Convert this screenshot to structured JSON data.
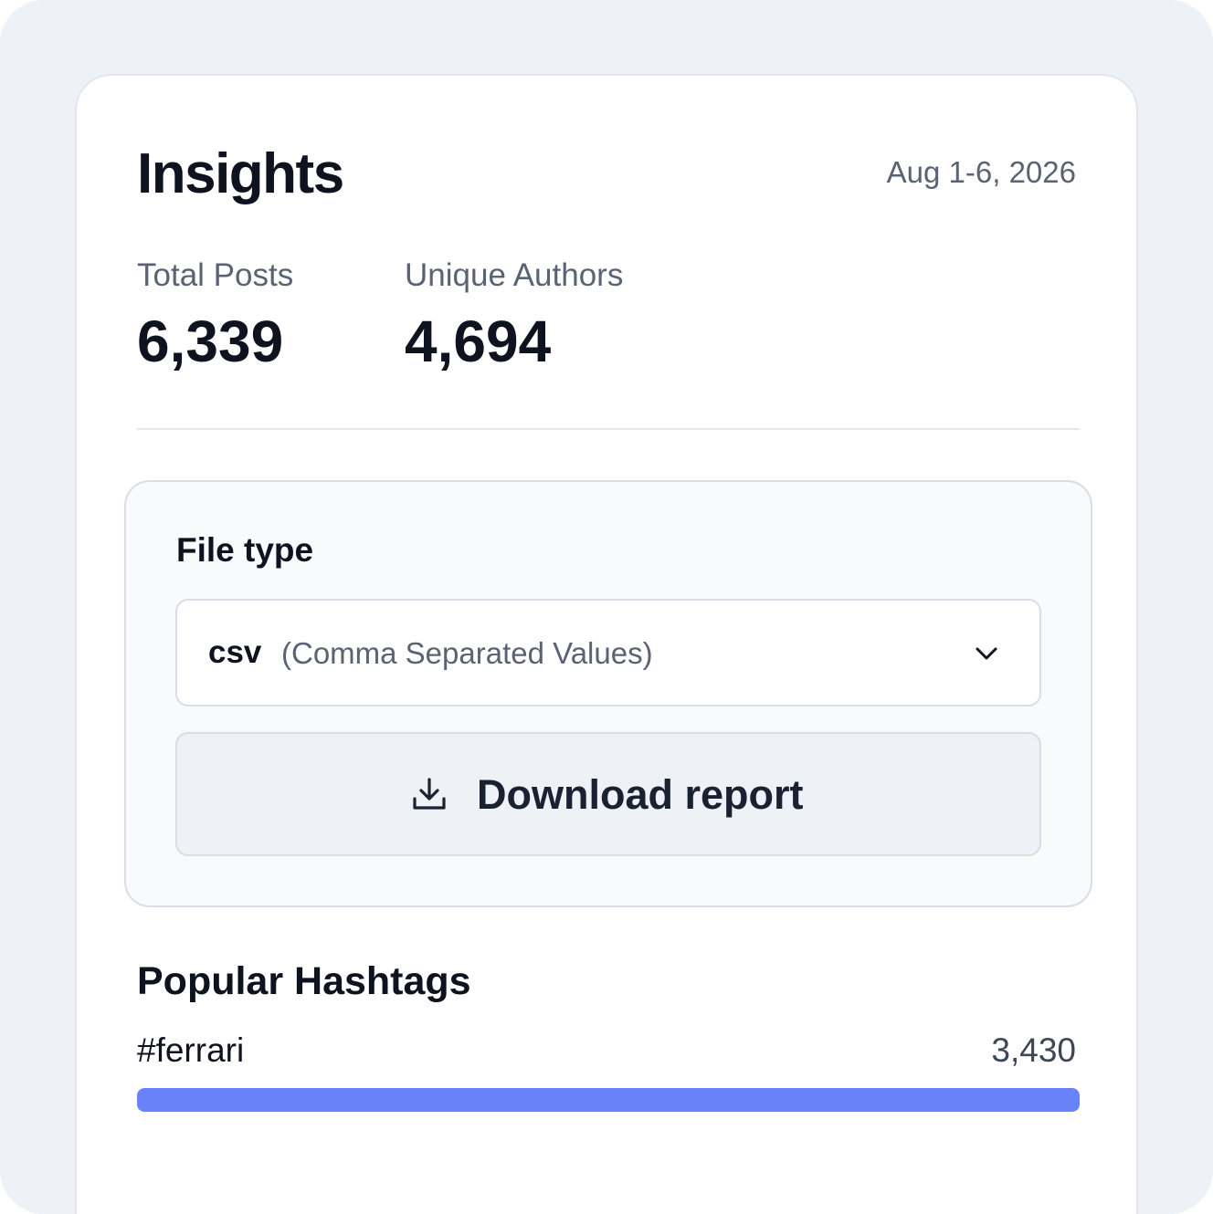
{
  "header": {
    "title": "Insights",
    "date_range": "Aug 1-6, 2026"
  },
  "stats": [
    {
      "label": "Total Posts",
      "value": "6,339"
    },
    {
      "label": "Unique Authors",
      "value": "4,694"
    }
  ],
  "export": {
    "label": "File type",
    "selected_code": "csv",
    "selected_description": "(Comma Separated Values)",
    "download_label": "Download report",
    "icons": {
      "dropdown": "chevron-down-icon",
      "download": "download-icon"
    }
  },
  "hashtags": {
    "title": "Popular Hashtags",
    "items": [
      {
        "tag": "#ferrari",
        "count": "3,430",
        "fraction": 1.0
      }
    ],
    "bar_color": "#6883f9"
  }
}
